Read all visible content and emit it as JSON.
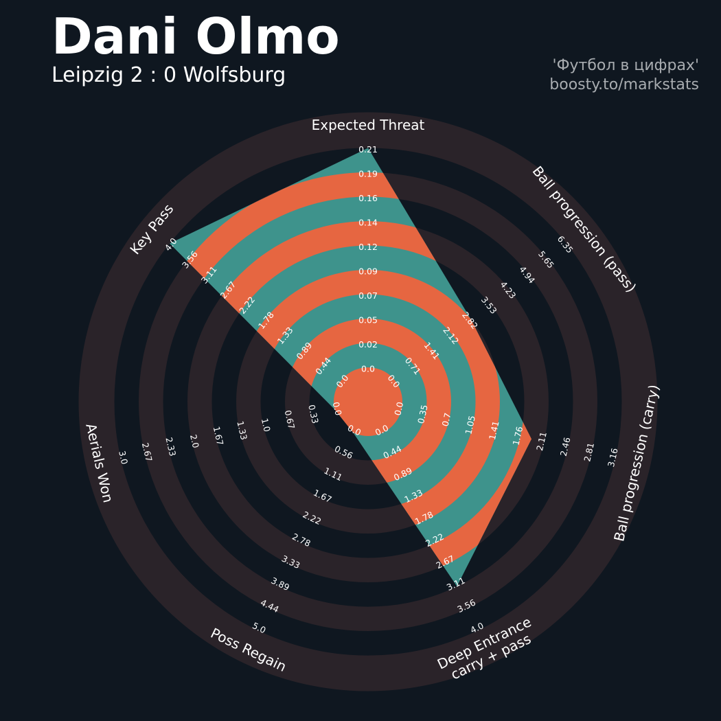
{
  "header": {
    "title": "Dani Olmo",
    "subtitle": "Leipzig 2 : 0 Wolfsburg",
    "credit_line1": "'Футбол в цифрах'",
    "credit_line2": "boosty.to/markstats"
  },
  "colors": {
    "background": "#0f1720",
    "ring_dark": "#2a2329",
    "radar_teal": "#3e938c",
    "radar_orange": "#e66641",
    "text": "#ffffff",
    "credit": "#a8acb0"
  },
  "chart_data": {
    "type": "radar",
    "title": "Dani Olmo",
    "subtitle": "Leipzig 2 : 0 Wolfsburg",
    "params": [
      {
        "label": [
          "Expected Threat"
        ],
        "min": 0.0,
        "max": 0.21,
        "value": 0.21,
        "ticks": [
          "0.0",
          "0.02",
          "0.05",
          "0.07",
          "0.09",
          "0.12",
          "0.14",
          "0.16",
          "0.19",
          "0.21"
        ]
      },
      {
        "label": [
          "Ball progression (pass)"
        ],
        "min": 0.0,
        "max": 6.35,
        "value": 2.82,
        "ticks": [
          "0.0",
          "0.71",
          "1.41",
          "2.12",
          "2.82",
          "3.53",
          "4.23",
          "4.94",
          "5.65",
          "6.35"
        ]
      },
      {
        "label": [
          "Ball progression (carry)"
        ],
        "min": 0.0,
        "max": 3.16,
        "value": 1.92,
        "ticks": [
          "0.0",
          "0.35",
          "0.7",
          "1.05",
          "1.41",
          "1.76",
          "2.11",
          "2.46",
          "2.81",
          "3.16"
        ]
      },
      {
        "label": [
          "Deep Entrance",
          "carry + pass"
        ],
        "min": 0.0,
        "max": 4.0,
        "value": 3.11,
        "ticks": [
          "0.0",
          "0.44",
          "0.89",
          "1.33",
          "1.78",
          "2.22",
          "2.67",
          "3.11",
          "3.56",
          "4.0"
        ]
      },
      {
        "label": [
          "Poss Regain"
        ],
        "min": 0.0,
        "max": 5.0,
        "value": 0.0,
        "ticks": [
          "0.0",
          "0.56",
          "1.11",
          "1.67",
          "2.22",
          "2.78",
          "3.33",
          "3.89",
          "4.44",
          "5.0"
        ]
      },
      {
        "label": [
          "Aerials Won"
        ],
        "min": 0.0,
        "max": 3.0,
        "value": 0.0,
        "ticks": [
          "0.0",
          "0.33",
          "0.67",
          "1.0",
          "1.33",
          "1.67",
          "2.0",
          "2.33",
          "2.67",
          "3.0"
        ]
      },
      {
        "label": [
          "Key Pass"
        ],
        "min": 0.0,
        "max": 4.0,
        "value": 4.0,
        "ticks": [
          "0.0",
          "0.44",
          "0.89",
          "1.33",
          "1.78",
          "2.22",
          "2.67",
          "3.11",
          "3.56",
          "4.0"
        ]
      }
    ],
    "rings": 10,
    "grid": true
  }
}
